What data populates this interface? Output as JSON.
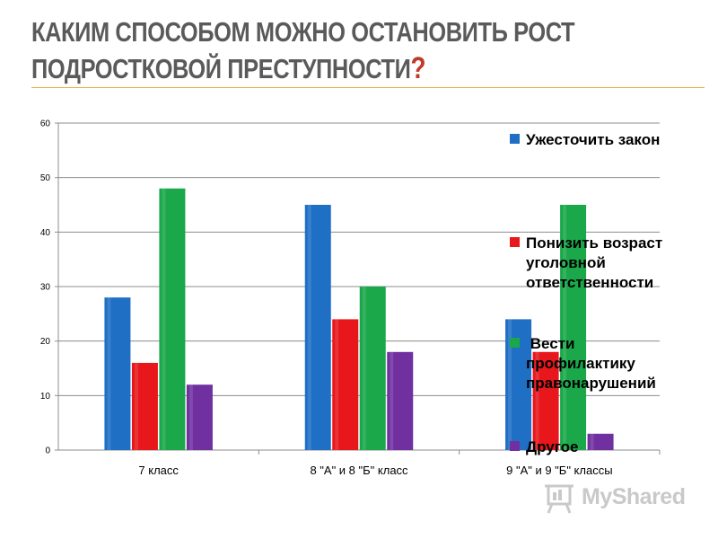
{
  "slide": {
    "title_line1": "КАКИМ СПОСОБОМ МОЖНО ОСТАНОВИТЬ РОСТ",
    "title_line2": "ПОДРОСТКОВОЙ ПРЕСТУПНОСТИ",
    "title_mark": "?"
  },
  "watermark": {
    "text": "MyShared",
    "icon": "presentation-board-icon"
  },
  "chart_data": {
    "type": "bar",
    "categories": [
      "7 класс",
      "8 \"А\" и 8 \"Б\" класс",
      "9 \"А\" и 9 \"Б\" классы"
    ],
    "series": [
      {
        "name": "Ужесточить закон",
        "values": [
          28,
          45,
          24
        ],
        "color": "#1f6fc5",
        "legend_lines": [
          "Ужесточить закон"
        ]
      },
      {
        "name": "Понизить возраст уголовной ответственности",
        "values": [
          16,
          24,
          18
        ],
        "color": "#e8171b",
        "legend_lines": [
          "Понизить возраст",
          "уголовной",
          "ответственности"
        ]
      },
      {
        "name": "Вести профилактику правонарушений",
        "values": [
          48,
          30,
          45
        ],
        "color": "#1aa84a",
        "legend_lines": [
          " Вести",
          "профилактику",
          "правонарушений"
        ]
      },
      {
        "name": "Другое",
        "values": [
          12,
          18,
          3
        ],
        "color": "#7030a0",
        "legend_lines": [
          "Другое"
        ]
      }
    ],
    "y_ticks": [
      "0",
      "10",
      "20",
      "30",
      "40",
      "50",
      "60"
    ],
    "ylim": [
      0,
      60
    ],
    "grid": true,
    "legend_position": "right",
    "title": "",
    "xlabel": "",
    "ylabel": ""
  }
}
